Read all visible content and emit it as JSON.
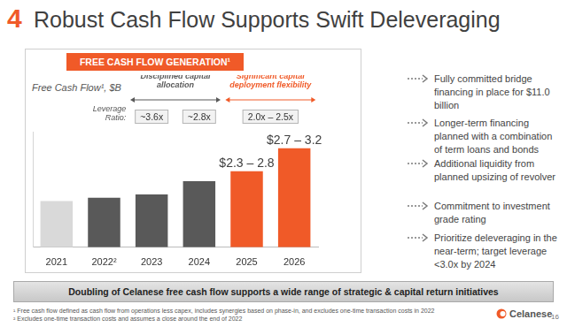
{
  "header": {
    "number": "4",
    "title": "Robust Cash Flow Supports Swift Deleveraging"
  },
  "chart_data": {
    "type": "bar",
    "title": "FREE CASH FLOW GENERATION¹",
    "y_label": "Free Cash Flow¹, $B",
    "categories": [
      "2021",
      "2022²",
      "2023",
      "2024",
      "2025",
      "2026"
    ],
    "values": [
      1.4,
      1.5,
      1.6,
      2.0,
      2.3,
      3.0
    ],
    "colors": [
      "#d9d9d9",
      "#595959",
      "#595959",
      "#595959",
      "#f05a28",
      "#f05a28"
    ],
    "ylim": [
      0,
      3.5
    ],
    "yticks": [],
    "grid": false,
    "tick_labels": "x",
    "annotations": [
      {
        "category": "2025",
        "text": "$2.3 – 2.8"
      },
      {
        "category": "2026",
        "text": "$2.7 – 3.2"
      }
    ],
    "periods": [
      {
        "categories": [
          "2023",
          "2024"
        ],
        "text": "Disciplined capital allocation"
      },
      {
        "categories": [
          "2025",
          "2026"
        ],
        "text": "Significant capital deployment flexibility"
      }
    ],
    "leverage_ratio": {
      "label": "Leverage Ratio:",
      "items": [
        {
          "categories": [
            "2023"
          ],
          "text": "~3.6x"
        },
        {
          "categories": [
            "2024"
          ],
          "text": "~2.8x"
        },
        {
          "categories": [
            "2025",
            "2026"
          ],
          "text": "2.0x – 2.5x"
        }
      ]
    }
  },
  "bullets": [
    "Fully committed bridge financing in place for $11.0 billion",
    "Longer-term financing planned with a combination of term loans and bonds",
    "Additional liquidity from planned upsizing of revolver",
    "Commitment to investment grade rating",
    "Prioritize deleveraging in the near-term; target leverage <3.0x by 2024"
  ],
  "banner": "Doubling of Celanese free cash flow supports a wide range of strategic & capital return initiatives",
  "footnotes": [
    "¹ Free cash flow defined as cash flow from operations less capex, includes synergies based on phase-in, and excludes one-time transaction costs in 2022",
    "² Excludes one-time transaction costs and assumes a close around the end of 2022"
  ],
  "logo": "Celanese",
  "page_number": "16"
}
